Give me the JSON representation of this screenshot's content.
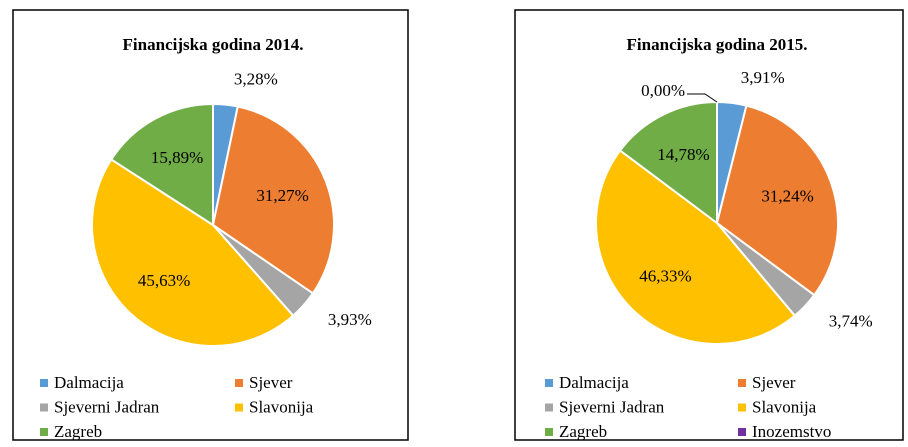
{
  "chart_data": [
    {
      "type": "pie",
      "title": "Financijska godina 2014.",
      "categories": [
        "Dalmacija",
        "Sjever",
        "Sjeverni Jadran",
        "Slavonija",
        "Zagreb"
      ],
      "values": [
        3.28,
        31.27,
        3.93,
        45.63,
        15.89
      ],
      "value_labels": [
        "3,28%",
        "31,27%",
        "3,93%",
        "45,63%",
        "15,89%"
      ],
      "colors": [
        "#5b9bd5",
        "#ed7d31",
        "#a5a5a5",
        "#ffc000",
        "#70ad47"
      ]
    },
    {
      "type": "pie",
      "title": "Financijska godina 2015.",
      "categories": [
        "Dalmacija",
        "Sjever",
        "Sjeverni Jadran",
        "Slavonija",
        "Zagreb",
        "Inozemstvo"
      ],
      "values": [
        3.91,
        31.24,
        3.74,
        46.33,
        14.78,
        0.0
      ],
      "value_labels": [
        "3,91%",
        "31,24%",
        "3,74%",
        "46,33%",
        "14,78%",
        "0,00%"
      ],
      "colors": [
        "#5b9bd5",
        "#ed7d31",
        "#a5a5a5",
        "#ffc000",
        "#70ad47",
        "#7030a0"
      ]
    }
  ]
}
